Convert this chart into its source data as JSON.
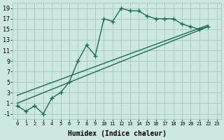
{
  "xlabel": "Humidex (Indice chaleur)",
  "bg_color": "#cce8e0",
  "grid_color": "#aaccc4",
  "line_color": "#1a6b5a",
  "xlim": [
    -0.5,
    23.5
  ],
  "ylim": [
    -2,
    20
  ],
  "xticks": [
    0,
    1,
    2,
    3,
    4,
    5,
    6,
    7,
    8,
    9,
    10,
    11,
    12,
    13,
    14,
    15,
    16,
    17,
    18,
    19,
    20,
    21,
    22,
    23
  ],
  "yticks": [
    -1,
    1,
    3,
    5,
    7,
    9,
    11,
    13,
    15,
    17,
    19
  ],
  "line1_x": [
    0,
    1,
    2,
    3,
    4,
    5,
    6,
    7,
    8,
    9,
    10,
    11,
    12,
    13,
    14,
    15,
    16,
    17,
    18,
    19,
    20,
    21,
    22
  ],
  "line1_y": [
    0.5,
    -0.5,
    0.5,
    -1.0,
    2.0,
    3.0,
    5.0,
    9.0,
    12.0,
    10.0,
    17.0,
    16.5,
    19.0,
    18.5,
    18.5,
    17.5,
    17.0,
    17.0,
    17.0,
    16.0,
    15.5,
    15.0,
    15.5
  ],
  "line2_x": [
    0,
    22
  ],
  "line2_y": [
    1.0,
    15.5
  ],
  "line3_x": [
    0,
    22
  ],
  "line3_y": [
    2.5,
    15.8
  ],
  "marker_style": "+",
  "marker_size": 4,
  "line_width": 1.0
}
